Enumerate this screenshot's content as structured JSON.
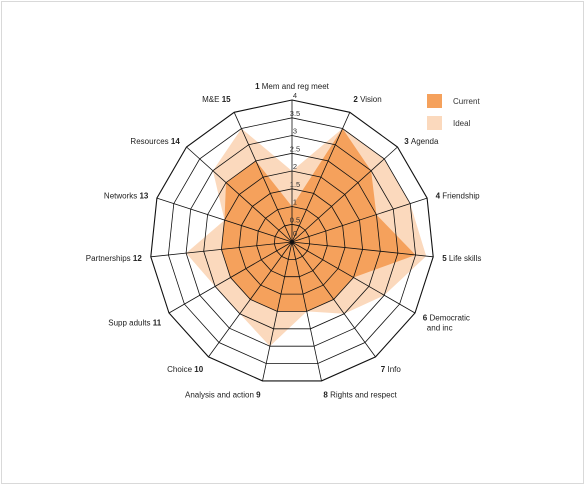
{
  "chart_data": {
    "type": "radar",
    "title": "",
    "axes": [
      {
        "num": "1",
        "label": "Mem and reg meet"
      },
      {
        "num": "2",
        "label": "Vision"
      },
      {
        "num": "3",
        "label": "Agenda"
      },
      {
        "num": "4",
        "label": "Friendship"
      },
      {
        "num": "5",
        "label": "Life skills"
      },
      {
        "num": "6",
        "label": "Democratic and inc"
      },
      {
        "num": "7",
        "label": "Info"
      },
      {
        "num": "8",
        "label": "Rights and respect"
      },
      {
        "num": "9",
        "label": "Analysis and  action"
      },
      {
        "num": "10",
        "label": "Choice"
      },
      {
        "num": "11",
        "label": "Supp adults"
      },
      {
        "num": "12",
        "label": "Partnerships"
      },
      {
        "num": "13",
        "label": "Networks"
      },
      {
        "num": "14",
        "label": "Resources"
      },
      {
        "num": "15",
        "label": "M&E"
      }
    ],
    "ticks": [
      "0",
      "0.5",
      "1",
      "1.5",
      "2",
      "2.5",
      "3",
      "3.5",
      "4"
    ],
    "rmax": 4,
    "series": [
      {
        "name": "Ideal",
        "color": "#fbd9bd",
        "values": [
          2.0,
          3.5,
          3.5,
          3.5,
          3.8,
          3.0,
          2.5,
          2.0,
          3.0,
          2.5,
          2.5,
          3.0,
          2.0,
          3.0,
          3.5
        ]
      },
      {
        "name": "Current",
        "color": "#f5a15c",
        "values": [
          1.0,
          3.5,
          3.0,
          2.5,
          3.5,
          2.0,
          2.0,
          2.0,
          2.0,
          2.0,
          2.0,
          2.0,
          2.0,
          2.5,
          2.5
        ]
      }
    ]
  }
}
